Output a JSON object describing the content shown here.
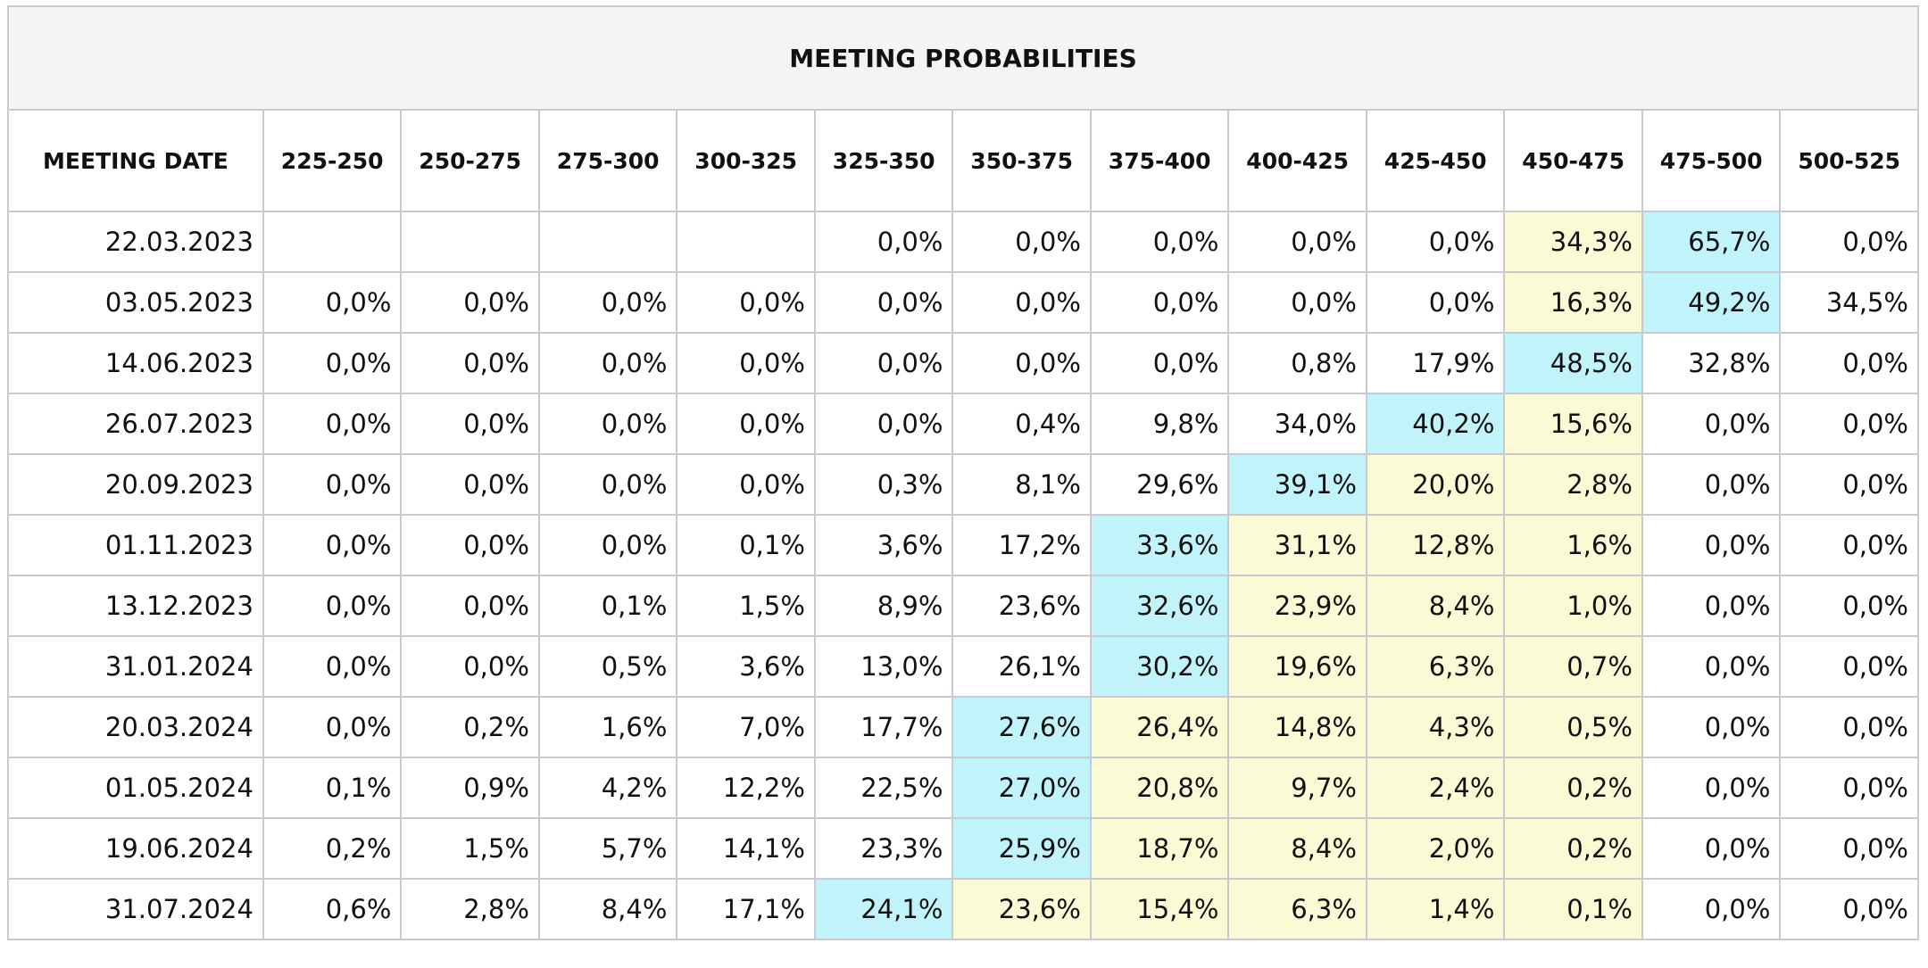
{
  "table": {
    "title": "MEETING PROBABILITIES",
    "columns": [
      "MEETING DATE",
      "225-250",
      "250-275",
      "275-300",
      "300-325",
      "325-350",
      "350-375",
      "375-400",
      "400-425",
      "425-450",
      "450-475",
      "475-500",
      "500-525"
    ],
    "rows": [
      {
        "date": "22.03.2023",
        "cells": [
          null,
          null,
          null,
          null,
          "0,0%",
          "0,0%",
          "0,0%",
          "0,0%",
          "0,0%",
          "34,3%",
          "65,7%",
          "0,0%"
        ],
        "colors": [
          null,
          null,
          null,
          null,
          null,
          null,
          null,
          null,
          null,
          "#fafad4",
          "#c0f4fa",
          null
        ]
      },
      {
        "date": "03.05.2023",
        "cells": [
          "0,0%",
          "0,0%",
          "0,0%",
          "0,0%",
          "0,0%",
          "0,0%",
          "0,0%",
          "0,0%",
          "0,0%",
          "16,3%",
          "49,2%",
          "34,5%"
        ],
        "colors": [
          null,
          null,
          null,
          null,
          null,
          null,
          null,
          null,
          null,
          "#fafad4",
          "#c0f4fa",
          null
        ]
      },
      {
        "date": "14.06.2023",
        "cells": [
          "0,0%",
          "0,0%",
          "0,0%",
          "0,0%",
          "0,0%",
          "0,0%",
          "0,0%",
          "0,8%",
          "17,9%",
          "48,5%",
          "32,8%",
          "0,0%"
        ],
        "colors": [
          null,
          null,
          null,
          null,
          null,
          null,
          null,
          null,
          null,
          "#c0f4fa",
          null,
          null
        ]
      },
      {
        "date": "26.07.2023",
        "cells": [
          "0,0%",
          "0,0%",
          "0,0%",
          "0,0%",
          "0,0%",
          "0,4%",
          "9,8%",
          "34,0%",
          "40,2%",
          "15,6%",
          "0,0%",
          "0,0%"
        ],
        "colors": [
          null,
          null,
          null,
          null,
          null,
          null,
          null,
          null,
          "#c0f4fa",
          "#fafad4",
          null,
          null
        ]
      },
      {
        "date": "20.09.2023",
        "cells": [
          "0,0%",
          "0,0%",
          "0,0%",
          "0,0%",
          "0,3%",
          "8,1%",
          "29,6%",
          "39,1%",
          "20,0%",
          "2,8%",
          "0,0%",
          "0,0%"
        ],
        "colors": [
          null,
          null,
          null,
          null,
          null,
          null,
          null,
          "#c0f4fa",
          "#fafad4",
          "#fafad4",
          null,
          null
        ]
      },
      {
        "date": "01.11.2023",
        "cells": [
          "0,0%",
          "0,0%",
          "0,0%",
          "0,1%",
          "3,6%",
          "17,2%",
          "33,6%",
          "31,1%",
          "12,8%",
          "1,6%",
          "0,0%",
          "0,0%"
        ],
        "colors": [
          null,
          null,
          null,
          null,
          null,
          null,
          "#c0f4fa",
          "#fafad4",
          "#fafad4",
          "#fafad4",
          null,
          null
        ]
      },
      {
        "date": "13.12.2023",
        "cells": [
          "0,0%",
          "0,0%",
          "0,1%",
          "1,5%",
          "8,9%",
          "23,6%",
          "32,6%",
          "23,9%",
          "8,4%",
          "1,0%",
          "0,0%",
          "0,0%"
        ],
        "colors": [
          null,
          null,
          null,
          null,
          null,
          null,
          "#c0f4fa",
          "#fafad4",
          "#fafad4",
          "#fafad4",
          null,
          null
        ]
      },
      {
        "date": "31.01.2024",
        "cells": [
          "0,0%",
          "0,0%",
          "0,5%",
          "3,6%",
          "13,0%",
          "26,1%",
          "30,2%",
          "19,6%",
          "6,3%",
          "0,7%",
          "0,0%",
          "0,0%"
        ],
        "colors": [
          null,
          null,
          null,
          null,
          null,
          null,
          "#c0f4fa",
          "#fafad4",
          "#fafad4",
          "#fafad4",
          null,
          null
        ]
      },
      {
        "date": "20.03.2024",
        "cells": [
          "0,0%",
          "0,2%",
          "1,6%",
          "7,0%",
          "17,7%",
          "27,6%",
          "26,4%",
          "14,8%",
          "4,3%",
          "0,5%",
          "0,0%",
          "0,0%"
        ],
        "colors": [
          null,
          null,
          null,
          null,
          null,
          "#c0f4fa",
          "#fafad4",
          "#fafad4",
          "#fafad4",
          "#fafad4",
          null,
          null
        ]
      },
      {
        "date": "01.05.2024",
        "cells": [
          "0,1%",
          "0,9%",
          "4,2%",
          "12,2%",
          "22,5%",
          "27,0%",
          "20,8%",
          "9,7%",
          "2,4%",
          "0,2%",
          "0,0%",
          "0,0%"
        ],
        "colors": [
          null,
          null,
          null,
          null,
          null,
          "#c0f4fa",
          "#fafad4",
          "#fafad4",
          "#fafad4",
          "#fafad4",
          null,
          null
        ]
      },
      {
        "date": "19.06.2024",
        "cells": [
          "0,2%",
          "1,5%",
          "5,7%",
          "14,1%",
          "23,3%",
          "25,9%",
          "18,7%",
          "8,4%",
          "2,0%",
          "0,2%",
          "0,0%",
          "0,0%"
        ],
        "colors": [
          null,
          null,
          null,
          null,
          null,
          "#c0f4fa",
          "#fafad4",
          "#fafad4",
          "#fafad4",
          "#fafad4",
          null,
          null
        ]
      },
      {
        "date": "31.07.2024",
        "cells": [
          "0,6%",
          "2,8%",
          "8,4%",
          "17,1%",
          "24,1%",
          "23,6%",
          "15,4%",
          "6,3%",
          "1,4%",
          "0,1%",
          "0,0%",
          "0,0%"
        ],
        "colors": [
          null,
          null,
          null,
          null,
          "#c0f4fa",
          "#fafad4",
          "#fafad4",
          "#fafad4",
          "#fafad4",
          "#fafad4",
          null,
          null
        ]
      }
    ]
  }
}
